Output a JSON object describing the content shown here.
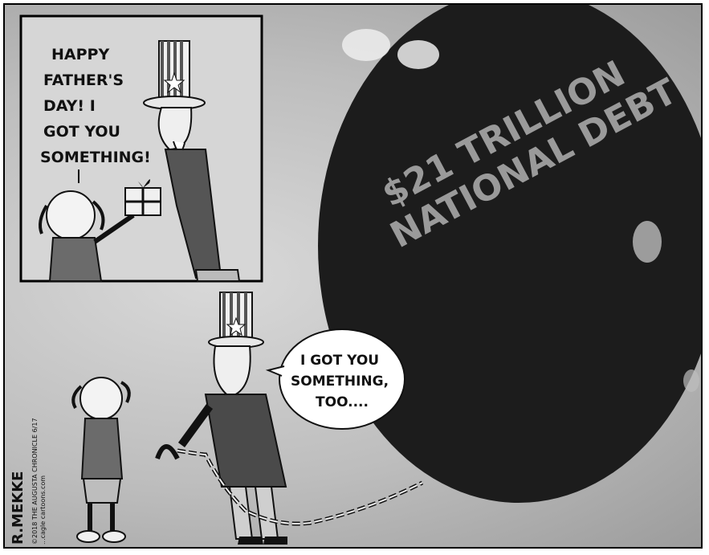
{
  "inset_panel": {
    "speech_lines": [
      "HAPPY",
      "FATHER'S",
      "DAY! I",
      "GOT YOU",
      "SOMETHING!"
    ]
  },
  "main_panel": {
    "speech_lines": [
      "I GOT YOU",
      "SOMETHING,",
      "TOO...."
    ]
  },
  "debt_ball": {
    "label_lines": [
      "$21 TRILLION",
      "NATIONAL DEBT"
    ]
  },
  "signature": {
    "artist": "R.MEKKE",
    "credit": "©2018 THE AUGUSTA CHRONICLE 6/17",
    "site": "...cagle cartoons.com"
  },
  "colors": {
    "ball": "#1c1c1c",
    "ball_text": "#9a9a9a",
    "ink": "#111111",
    "panel_bg": "#c7c7c7"
  }
}
